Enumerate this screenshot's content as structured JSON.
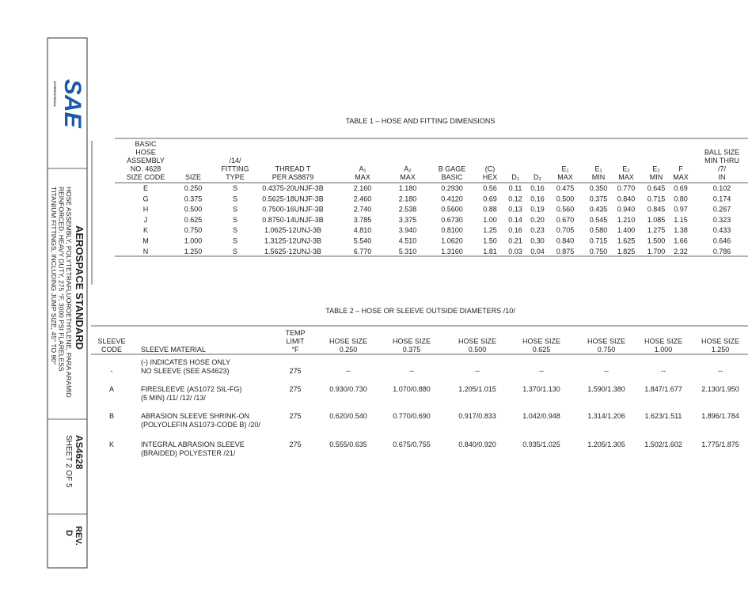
{
  "sidebar": {
    "logo": "SAE",
    "logo_sub": "INTERNATIONAL",
    "doc_type": "AEROSPACE STANDARD",
    "title_lines": [
      "HOSE ASSEMBLY, POLYTETRAFLUOROETHYLENE, PARA ARAMID",
      "REINFORCED, HEAVY DUTY, 275 °F, 3000 PSI FLARELESS",
      "TITANIUM FITTINGS, INCLUDING JUMP SIZE, 45° TO 90°"
    ],
    "doc_number": "AS4628",
    "sheet": "SHEET 2 OF 5",
    "rev_label": "REV.",
    "rev": "D"
  },
  "table1": {
    "title": "TABLE 1 – HOSE AND FITTING DIMENSIONS",
    "columns": [
      [
        "BASIC",
        "HOSE",
        "ASSEMBLY",
        "NO. 4628",
        "SIZE CODE"
      ],
      [
        "SIZE"
      ],
      [
        "/14/",
        "FITTING",
        "TYPE"
      ],
      [
        "THREAD T",
        "PER AS8879"
      ],
      [
        "A₁",
        "MAX"
      ],
      [
        "A₂",
        "MAX"
      ],
      [
        "B GAGE",
        "BASIC"
      ],
      [
        "(C)",
        "HEX"
      ],
      [
        "D₁"
      ],
      [
        "D₂"
      ],
      [
        "E₁",
        "MAX"
      ],
      [
        "E₁",
        "MIN"
      ],
      [
        "E₂",
        "MAX"
      ],
      [
        "E₂",
        "MIN"
      ],
      [
        "F",
        "MAX"
      ],
      [
        "BALL SIZE",
        "MIN THRU",
        "/7/",
        "IN"
      ]
    ],
    "rows": [
      [
        "E",
        "0.250",
        "S",
        "0.4375-20UNJF-3B",
        "2.160",
        "1.180",
        "0.2930",
        "0.56",
        "0.11",
        "0.16",
        "0.475",
        "0.350",
        "0.770",
        "0.645",
        "0.69",
        "0.102"
      ],
      [
        "G",
        "0.375",
        "S",
        "0.5625-18UNJF-3B",
        "2.460",
        "2.180",
        "0.4120",
        "0.69",
        "0.12",
        "0.16",
        "0.500",
        "0.375",
        "0.840",
        "0.715",
        "0.80",
        "0.174"
      ],
      [
        "H",
        "0.500",
        "S",
        "0.7500-16UNJF-3B",
        "2.740",
        "2.538",
        "0.5600",
        "0.88",
        "0.13",
        "0.19",
        "0.560",
        "0.435",
        "0.940",
        "0.845",
        "0.97",
        "0.267"
      ],
      [
        "J",
        "0.625",
        "S",
        "0.8750-14UNJF-3B",
        "3.785",
        "3.375",
        "0.6730",
        "1.00",
        "0.14",
        "0.20",
        "0.670",
        "0.545",
        "1.210",
        "1.085",
        "1.15",
        "0.323"
      ],
      [
        "K",
        "0.750",
        "S",
        "1.0625-12UNJ-3B",
        "4.810",
        "3.940",
        "0.8100",
        "1.25",
        "0.16",
        "0.23",
        "0.705",
        "0.580",
        "1.400",
        "1.275",
        "1.38",
        "0.433"
      ],
      [
        "M",
        "1.000",
        "S",
        "1.3125-12UNJ-3B",
        "5.540",
        "4.510",
        "1.0620",
        "1.50",
        "0.21",
        "0.30",
        "0.840",
        "0.715",
        "1.625",
        "1.500",
        "1.66",
        "0.646"
      ],
      [
        "N",
        "1.250",
        "S",
        "1.5625-12UNJ-3B",
        "6.770",
        "5.310",
        "1.3160",
        "1.81",
        "0.03",
        "0.04",
        "0.875",
        "0.750",
        "1.825",
        "1.700",
        "2.32",
        "0.786"
      ]
    ]
  },
  "table2": {
    "title": "TABLE 2 – HOSE OR SLEEVE OUTSIDE DIAMETERS /10/",
    "columns": [
      [
        "SLEEVE",
        "CODE"
      ],
      [
        "SLEEVE MATERIAL"
      ],
      [
        "TEMP",
        "LIMIT",
        "°F"
      ],
      [
        "HOSE SIZE",
        "0.250"
      ],
      [
        "HOSE SIZE",
        "0.375"
      ],
      [
        "HOSE SIZE",
        "0.500"
      ],
      [
        "HOSE SIZE",
        "0.625"
      ],
      [
        "HOSE SIZE",
        "0.750"
      ],
      [
        "HOSE SIZE",
        "1.000"
      ],
      [
        "HOSE SIZE",
        "1.250"
      ]
    ],
    "rows": [
      {
        "code": "-",
        "material": [
          "(-) INDICATES HOSE ONLY",
          "NO SLEEVE (SEE AS4623)"
        ],
        "temp": "275",
        "values": [
          "--",
          "--",
          "--",
          "--",
          "--",
          "--",
          "--"
        ]
      },
      {
        "code": "A",
        "material": [
          "FIRESLEEVE (AS1072 SIL-FG)",
          "(5 MIN) /11/ /12/ /13/"
        ],
        "temp": "275",
        "values": [
          "0.930/0.730",
          "1.070/0.880",
          "1.205/1.015",
          "1.370/1.130",
          "1.590/1.380",
          "1.847/1.677",
          "2.130/1.950"
        ]
      },
      {
        "code": "B",
        "material": [
          "ABRASION SLEEVE SHRINK-ON",
          "(POLYOLEFIN AS1073-CODE B) /20/"
        ],
        "temp": "275",
        "values": [
          "0.620/0.540",
          "0.770/0.690",
          "0.917/0.833",
          "1.042/0.948",
          "1.314/1.206",
          "1.623/1.511",
          "1.896/1.784"
        ]
      },
      {
        "code": "K",
        "material": [
          "INTEGRAL ABRASION SLEEVE",
          "(BRAIDED) POLYESTER /21/"
        ],
        "temp": "275",
        "values": [
          "0.555/0.635",
          "0.675/0.755",
          "0.840/0.920",
          "0.935/1.025",
          "1.205/1.305",
          "1.502/1.602",
          "1.775/1.875"
        ]
      }
    ]
  }
}
